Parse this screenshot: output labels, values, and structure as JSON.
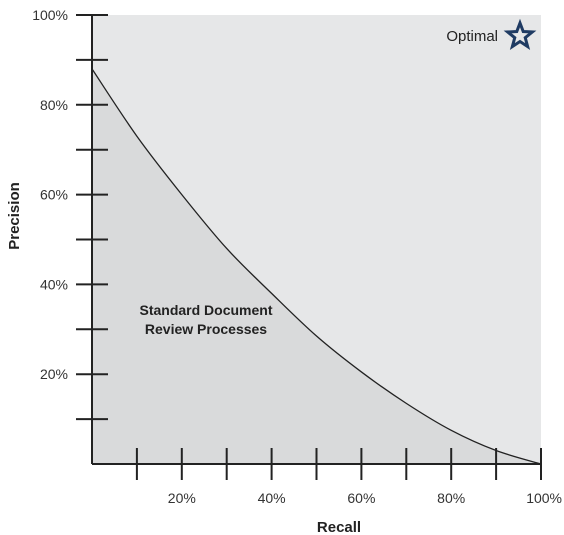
{
  "chart_data": {
    "type": "area",
    "title": "",
    "xlabel": "Recall",
    "ylabel": "Precision",
    "xlim": [
      0,
      100
    ],
    "ylim": [
      0,
      100
    ],
    "x_ticks": [
      10,
      20,
      30,
      40,
      50,
      60,
      70,
      80,
      90,
      100
    ],
    "x_tick_labels": [
      {
        "value": 20,
        "label": "20%"
      },
      {
        "value": 40,
        "label": "40%"
      },
      {
        "value": 60,
        "label": "60%"
      },
      {
        "value": 80,
        "label": "80%"
      },
      {
        "value": 100,
        "label": "100%"
      }
    ],
    "y_ticks": [
      10,
      20,
      30,
      40,
      50,
      60,
      70,
      80,
      90,
      100
    ],
    "y_tick_labels": [
      {
        "value": 20,
        "label": "20%"
      },
      {
        "value": 40,
        "label": "40%"
      },
      {
        "value": 60,
        "label": "60%"
      },
      {
        "value": 80,
        "label": "80%"
      },
      {
        "value": 100,
        "label": "100%"
      }
    ],
    "grid": false,
    "series": [
      {
        "x": [
          0,
          10,
          20,
          30,
          40,
          50,
          60,
          70,
          80,
          90,
          100
        ],
        "y": [
          88,
          73,
          60,
          48,
          38,
          28.5,
          20.5,
          13.5,
          7.5,
          3,
          0
        ]
      }
    ],
    "annotations": [
      {
        "text_lines": [
          "Standard Document",
          "Review Processes"
        ],
        "x": 25,
        "y": 32
      },
      {
        "text": "Optimal",
        "x": 100,
        "y": 96,
        "marker": "star"
      }
    ],
    "colors": {
      "plot_background": "#e6e7e8",
      "area_fill": "#d9dadb",
      "curve": "#222222",
      "axis": "#222222",
      "star": "#1f3b63"
    }
  }
}
